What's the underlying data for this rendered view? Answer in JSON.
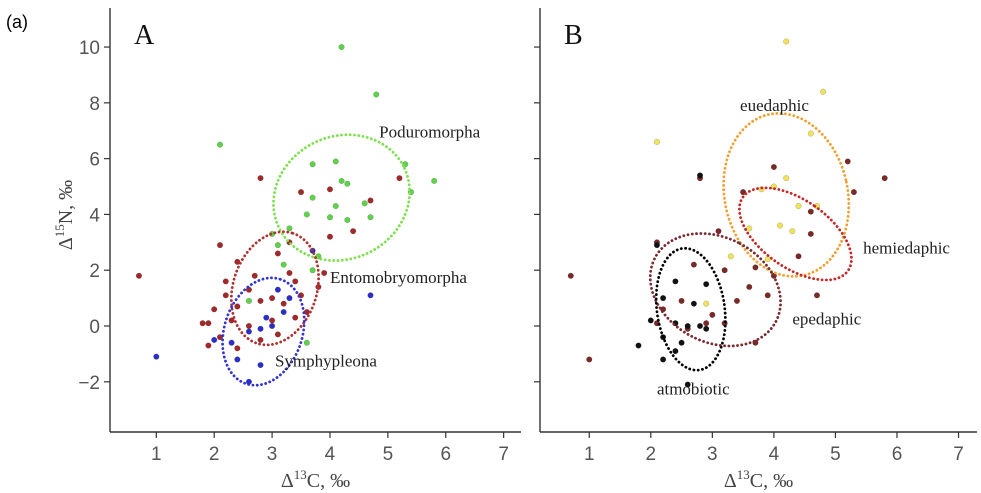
{
  "figure_label": "(a)",
  "chart_data": [
    {
      "type": "scatter",
      "panel_label": "A",
      "xlabel": "Δ13C, ‰",
      "ylabel": "Δ15N, ‰",
      "xlim": [
        0.2,
        7.3
      ],
      "ylim": [
        -3.8,
        11.4
      ],
      "xticks": [
        1,
        2,
        3,
        4,
        5,
        6,
        7
      ],
      "yticks": [
        -2,
        0,
        2,
        4,
        6,
        8,
        10
      ],
      "grid": false,
      "series": [
        {
          "color": "#5ed34a",
          "points": [
            [
              2.1,
              6.5
            ],
            [
              4.2,
              10.0
            ],
            [
              4.8,
              8.3
            ],
            [
              3.7,
              5.8
            ],
            [
              4.1,
              5.9
            ],
            [
              4.2,
              5.2
            ],
            [
              4.3,
              5.1
            ],
            [
              5.3,
              5.8
            ],
            [
              5.8,
              5.2
            ],
            [
              5.4,
              4.8
            ],
            [
              3.7,
              4.6
            ],
            [
              4.1,
              4.3
            ],
            [
              4.6,
              4.4
            ],
            [
              3.6,
              4.0
            ],
            [
              4.0,
              3.9
            ],
            [
              4.3,
              3.8
            ],
            [
              4.7,
              3.9
            ],
            [
              3.3,
              3.5
            ],
            [
              3.1,
              2.9
            ],
            [
              3.0,
              3.3
            ],
            [
              3.2,
              2.2
            ],
            [
              3.8,
              2.5
            ],
            [
              3.7,
              2.0
            ],
            [
              2.6,
              0.9
            ],
            [
              3.6,
              -0.6
            ]
          ]
        },
        {
          "color": "#a3282a",
          "points": [
            [
              0.7,
              1.8
            ],
            [
              2.8,
              5.3
            ],
            [
              3.5,
              4.8
            ],
            [
              4.0,
              4.9
            ],
            [
              4.7,
              4.5
            ],
            [
              5.2,
              5.3
            ],
            [
              2.1,
              2.9
            ],
            [
              2.4,
              2.3
            ],
            [
              3.1,
              2.6
            ],
            [
              2.2,
              1.6
            ],
            [
              2.7,
              1.8
            ],
            [
              3.4,
              1.6
            ],
            [
              3.9,
              1.9
            ],
            [
              2.2,
              1.1
            ],
            [
              2.6,
              1.3
            ],
            [
              3.0,
              1.0
            ],
            [
              3.5,
              1.1
            ],
            [
              3.8,
              1.4
            ],
            [
              2.0,
              0.6
            ],
            [
              2.4,
              0.7
            ],
            [
              2.8,
              0.9
            ],
            [
              3.2,
              0.8
            ],
            [
              1.8,
              0.1
            ],
            [
              1.9,
              0.1
            ],
            [
              2.3,
              0.2
            ],
            [
              2.6,
              0.0
            ],
            [
              3.0,
              0.2
            ],
            [
              3.4,
              0.3
            ],
            [
              2.1,
              -0.4
            ],
            [
              2.8,
              -0.5
            ],
            [
              3.1,
              -0.3
            ],
            [
              3.6,
              0.5
            ],
            [
              1.9,
              -0.7
            ],
            [
              2.4,
              -0.8
            ],
            [
              3.3,
              3.0
            ],
            [
              4.0,
              3.2
            ],
            [
              4.4,
              3.4
            ],
            [
              3.3,
              1.9
            ]
          ]
        },
        {
          "color": "#2b2ecb",
          "points": [
            [
              1.0,
              -1.1
            ],
            [
              2.3,
              -0.6
            ],
            [
              2.6,
              -0.2
            ],
            [
              2.8,
              -0.1
            ],
            [
              3.0,
              0.0
            ],
            [
              2.9,
              0.3
            ],
            [
              3.1,
              1.3
            ],
            [
              3.3,
              1.0
            ],
            [
              3.2,
              0.5
            ],
            [
              3.7,
              2.7
            ],
            [
              2.4,
              -1.2
            ],
            [
              2.8,
              -1.4
            ],
            [
              2.6,
              -2.0
            ],
            [
              4.7,
              1.1
            ],
            [
              2.0,
              -0.5
            ]
          ]
        }
      ],
      "ellipses": [
        {
          "name": "Poduromorpha",
          "color": "#7ee04e",
          "cx": 4.2,
          "cy": 4.6,
          "rx": 1.2,
          "ry": 2.2,
          "rot": -25
        },
        {
          "name": "Entomobryomorpha",
          "color": "#b03030",
          "cx": 3.05,
          "cy": 1.35,
          "rx": 1.0,
          "ry": 1.5,
          "rot": -72
        },
        {
          "name": "Symphypleona",
          "color": "#3232d8",
          "cx": 2.85,
          "cy": -0.2,
          "rx": 0.95,
          "ry": 1.4,
          "rot": -72
        }
      ],
      "labels": [
        {
          "text": "Poduromorpha",
          "x": 4.85,
          "y": 6.75
        },
        {
          "text": "Entomobryomorpha",
          "x": 4.0,
          "y": 1.55
        },
        {
          "text": "Symphypleona",
          "x": 3.05,
          "y": -1.45
        }
      ]
    },
    {
      "type": "scatter",
      "panel_label": "B",
      "xlabel": "Δ13C, ‰",
      "ylabel": "",
      "xlim": [
        0.2,
        7.3
      ],
      "ylim": [
        -3.8,
        11.4
      ],
      "xticks": [
        1,
        2,
        3,
        4,
        5,
        6,
        7
      ],
      "yticks": [
        -2,
        0,
        2,
        4,
        6,
        8,
        10
      ],
      "grid": false,
      "series": [
        {
          "color": "#f0e35a",
          "points": [
            [
              2.1,
              6.6
            ],
            [
              4.2,
              10.2
            ],
            [
              4.8,
              8.4
            ],
            [
              4.6,
              6.9
            ],
            [
              4.2,
              5.3
            ],
            [
              4.0,
              5.0
            ],
            [
              3.8,
              4.9
            ],
            [
              4.4,
              4.3
            ],
            [
              4.7,
              4.3
            ],
            [
              3.6,
              3.5
            ],
            [
              4.1,
              3.6
            ],
            [
              4.3,
              3.4
            ],
            [
              3.3,
              2.5
            ],
            [
              3.9,
              2.4
            ],
            [
              2.9,
              0.8
            ]
          ]
        },
        {
          "color": "#7a2a26",
          "points": [
            [
              0.7,
              1.8
            ],
            [
              2.8,
              5.3
            ],
            [
              3.5,
              4.8
            ],
            [
              4.0,
              5.7
            ],
            [
              5.2,
              5.9
            ],
            [
              5.8,
              5.3
            ],
            [
              5.3,
              4.8
            ],
            [
              2.1,
              3.0
            ],
            [
              3.1,
              3.4
            ],
            [
              4.6,
              4.1
            ],
            [
              2.7,
              2.2
            ],
            [
              3.2,
              2.0
            ],
            [
              3.7,
              2.1
            ],
            [
              4.0,
              1.8
            ],
            [
              4.4,
              2.5
            ],
            [
              3.6,
              1.4
            ],
            [
              3.9,
              1.1
            ],
            [
              4.7,
              1.1
            ],
            [
              2.2,
              0.6
            ],
            [
              2.5,
              0.9
            ],
            [
              3.4,
              0.9
            ],
            [
              3.0,
              0.4
            ],
            [
              3.2,
              0.1
            ],
            [
              2.1,
              0.1
            ],
            [
              2.6,
              -0.1
            ],
            [
              2.9,
              0.1
            ],
            [
              3.7,
              -0.6
            ],
            [
              1.0,
              -1.2
            ],
            [
              4.6,
              3.3
            ]
          ]
        },
        {
          "color": "#111111",
          "points": [
            [
              2.1,
              2.9
            ],
            [
              2.8,
              5.4
            ],
            [
              2.4,
              1.6
            ],
            [
              2.9,
              1.5
            ],
            [
              2.2,
              1.0
            ],
            [
              2.7,
              0.8
            ],
            [
              2.0,
              0.2
            ],
            [
              2.4,
              0.1
            ],
            [
              2.6,
              0.0
            ],
            [
              2.8,
              0.0
            ],
            [
              1.8,
              -0.7
            ],
            [
              2.2,
              -0.4
            ],
            [
              2.5,
              -0.6
            ],
            [
              2.4,
              -0.9
            ],
            [
              2.2,
              -1.2
            ],
            [
              2.6,
              -2.1
            ],
            [
              2.9,
              -0.1
            ]
          ]
        }
      ],
      "ellipses": [
        {
          "name": "euedaphic",
          "color": "#f0a030",
          "cx": 4.2,
          "cy": 4.7,
          "rx": 1.0,
          "ry": 2.95,
          "rot": -12
        },
        {
          "name": "hemiedaphic",
          "color": "#c62828",
          "cx": 4.35,
          "cy": 3.3,
          "rx": 0.55,
          "ry": 2.3,
          "rot": -55
        },
        {
          "name": "epedaphic",
          "color": "#7a2a30",
          "cx": 3.05,
          "cy": 1.3,
          "rx": 0.85,
          "ry": 2.45,
          "rot": -62
        },
        {
          "name": "atmobiotic",
          "color": "#000000",
          "cx": 2.65,
          "cy": 0.6,
          "rx": 0.55,
          "ry": 2.2,
          "rot": -8
        }
      ],
      "labels": [
        {
          "text": "euedaphic",
          "x": 3.45,
          "y": 7.7
        },
        {
          "text": "hemiedaphic",
          "x": 5.45,
          "y": 2.6
        },
        {
          "text": "epedaphic",
          "x": 4.3,
          "y": 0.05
        },
        {
          "text": "atmobiotic",
          "x": 2.1,
          "y": -2.45
        }
      ]
    }
  ]
}
